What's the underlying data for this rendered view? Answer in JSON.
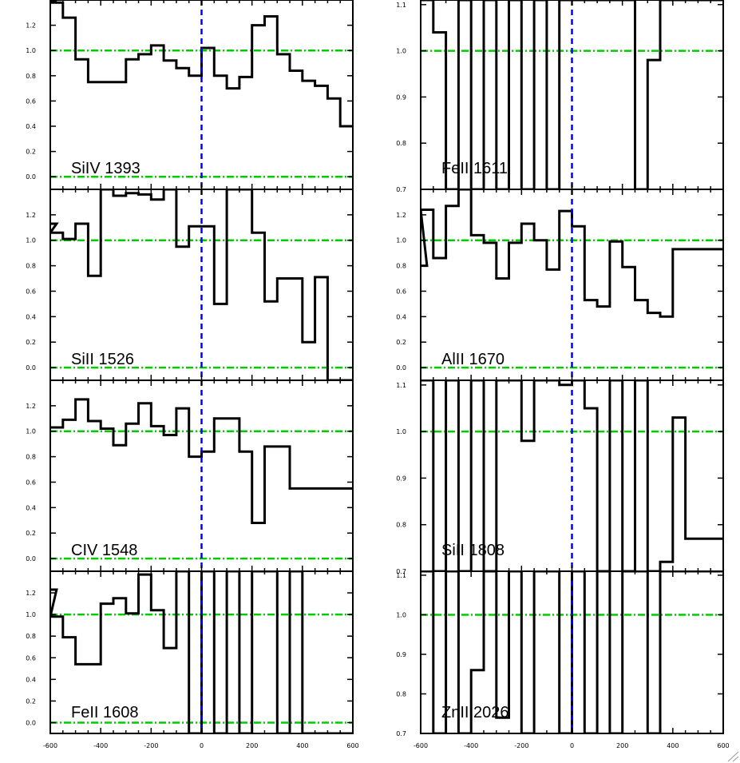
{
  "chart_data": [
    {
      "type": "line",
      "title": "SiIV 1393",
      "xlim": [
        -600,
        600
      ],
      "ylim": [
        -0.1,
        1.4
      ],
      "yticks": [
        "0.0",
        "0.2",
        "0.4",
        "0.6",
        "0.8",
        "1.0",
        "1.2"
      ],
      "xticks": [],
      "reference_lines": [
        0,
        1
      ],
      "x": [
        -600,
        -575,
        -525,
        -475,
        -425,
        -375,
        -325,
        -275,
        -225,
        -175,
        -125,
        -75,
        -25,
        25,
        75,
        125,
        175,
        225,
        275,
        325,
        375,
        425,
        475,
        525,
        575
      ],
      "y": [
        1.4,
        1.38,
        1.26,
        0.93,
        0.75,
        0.75,
        0.75,
        0.93,
        0.97,
        1.04,
        0.92,
        0.86,
        0.8,
        1.02,
        0.8,
        0.7,
        0.79,
        1.2,
        1.27,
        0.97,
        0.84,
        0.76,
        0.72,
        0.62,
        0.4
      ]
    },
    {
      "type": "line",
      "title": "FeII 1611",
      "xlim": [
        -600,
        600
      ],
      "ylim": [
        0.7,
        1.11
      ],
      "yticks": [
        "0.7",
        "0.8",
        "0.9",
        "1.0",
        "1.1"
      ],
      "xticks": [],
      "reference_lines": [
        1.0
      ],
      "x": [
        -600,
        -575,
        -525,
        -475,
        -425,
        -375,
        -325,
        -275,
        -225,
        -175,
        -125,
        -75,
        -25,
        25,
        75,
        125,
        175,
        225,
        275,
        325,
        375,
        425,
        475,
        525,
        575
      ],
      "y": [
        1.11,
        1.11,
        1.04,
        0.7,
        1.11,
        0.7,
        1.11,
        0.7,
        1.11,
        0.7,
        1.11,
        0.7,
        1.11,
        1.11,
        1.11,
        1.11,
        1.11,
        1.11,
        0.7,
        0.98,
        1.11,
        1.11,
        1.11,
        1.11,
        1.11
      ]
    },
    {
      "type": "line",
      "title": "SiII 1526",
      "xlim": [
        -600,
        600
      ],
      "ylim": [
        -0.1,
        1.4
      ],
      "yticks": [
        "0.0",
        "0.2",
        "0.4",
        "0.6",
        "0.8",
        "1.0",
        "1.2"
      ],
      "xticks": [],
      "reference_lines": [
        0,
        1
      ],
      "x": [
        -600,
        -575,
        -525,
        -475,
        -425,
        -375,
        -325,
        -275,
        -225,
        -175,
        -125,
        -75,
        -25,
        25,
        75,
        125,
        175,
        225,
        275,
        325,
        375,
        425,
        475,
        525,
        575
      ],
      "y": [
        1.13,
        1.06,
        1.01,
        1.13,
        0.72,
        1.4,
        1.35,
        1.37,
        1.36,
        1.32,
        1.4,
        0.95,
        1.11,
        1.11,
        0.5,
        1.4,
        1.4,
        1.06,
        0.52,
        0.7,
        0.7,
        0.2,
        0.71,
        -0.1,
        -0.1
      ]
    },
    {
      "type": "line",
      "title": "AlII 1670",
      "xlim": [
        -600,
        600
      ],
      "ylim": [
        -0.1,
        1.4
      ],
      "yticks": [
        "0.0",
        "0.2",
        "0.4",
        "0.6",
        "0.8",
        "1.0",
        "1.2"
      ],
      "xticks": [],
      "reference_lines": [
        0,
        1
      ],
      "x": [
        -600,
        -575,
        -525,
        -475,
        -425,
        -375,
        -325,
        -275,
        -225,
        -175,
        -125,
        -75,
        -25,
        25,
        75,
        125,
        175,
        225,
        275,
        325,
        375,
        425,
        475,
        525,
        575
      ],
      "y": [
        0.8,
        1.24,
        0.86,
        1.27,
        1.4,
        1.04,
        0.98,
        0.7,
        0.98,
        1.13,
        1.0,
        0.77,
        1.23,
        1.11,
        0.53,
        0.48,
        0.99,
        0.79,
        0.53,
        0.43,
        0.4,
        0.93,
        0.93,
        0.93,
        0.93
      ]
    },
    {
      "type": "line",
      "title": "CIV 1548",
      "xlim": [
        -600,
        600
      ],
      "ylim": [
        -0.1,
        1.4
      ],
      "yticks": [
        "0.0",
        "0.2",
        "0.4",
        "0.6",
        "0.8",
        "1.0",
        "1.2"
      ],
      "xticks": [],
      "reference_lines": [
        0,
        1
      ],
      "x": [
        -600,
        -575,
        -525,
        -475,
        -425,
        -375,
        -325,
        -275,
        -225,
        -175,
        -125,
        -75,
        -25,
        25,
        75,
        125,
        175,
        225,
        275,
        325,
        375,
        425,
        475,
        525,
        575
      ],
      "y": [
        1.03,
        1.03,
        1.09,
        1.25,
        1.08,
        1.02,
        0.89,
        1.06,
        1.22,
        1.04,
        0.97,
        1.18,
        0.8,
        0.84,
        1.1,
        1.1,
        0.84,
        0.28,
        0.88,
        0.88,
        0.55,
        0.55,
        0.55,
        0.55,
        0.55
      ]
    },
    {
      "type": "line",
      "title": "SiII 1808",
      "xlim": [
        -600,
        600
      ],
      "ylim": [
        0.7,
        1.11
      ],
      "yticks": [
        "0.7",
        "0.8",
        "0.9",
        "1.0",
        "1.1"
      ],
      "xticks": [],
      "reference_lines": [
        1.0
      ],
      "x": [
        -600,
        -575,
        -525,
        -475,
        -425,
        -375,
        -325,
        -275,
        -225,
        -175,
        -125,
        -75,
        -25,
        25,
        75,
        125,
        175,
        225,
        275,
        325,
        375,
        425,
        475,
        525,
        575
      ],
      "y": [
        1.11,
        1.11,
        0.7,
        1.11,
        0.7,
        1.11,
        0.7,
        1.11,
        1.11,
        0.98,
        1.11,
        1.11,
        1.1,
        1.11,
        1.05,
        0.7,
        1.11,
        0.7,
        1.11,
        0.7,
        0.72,
        1.03,
        0.77,
        0.77,
        0.77
      ]
    },
    {
      "type": "line",
      "title": "FeII 1608",
      "xlim": [
        -600,
        600
      ],
      "ylim": [
        -0.1,
        1.4
      ],
      "yticks": [
        "0.0",
        "0.2",
        "0.4",
        "0.6",
        "0.8",
        "1.0",
        "1.2"
      ],
      "xticks": [
        "-600",
        "-400",
        "-200",
        "0",
        "200",
        "400",
        "600"
      ],
      "reference_lines": [
        0,
        1
      ],
      "x": [
        -600,
        -575,
        -525,
        -475,
        -425,
        -375,
        -325,
        -275,
        -225,
        -175,
        -125,
        -75,
        -25,
        25,
        75,
        125,
        175,
        225,
        275,
        325,
        375,
        425,
        475,
        525,
        575
      ],
      "y": [
        1.23,
        0.98,
        0.79,
        0.54,
        0.54,
        1.1,
        1.15,
        1.01,
        1.37,
        1.04,
        0.69,
        1.4,
        -0.1,
        1.4,
        -0.1,
        1.4,
        -0.1,
        1.4,
        1.4,
        -0.1,
        1.4,
        -0.1,
        -0.1,
        -0.1,
        -0.1
      ]
    },
    {
      "type": "line",
      "title": "ZnII 2026",
      "xlim": [
        -600,
        600
      ],
      "ylim": [
        0.7,
        1.11
      ],
      "yticks": [
        "0.7",
        "0.8",
        "0.9",
        "1.0",
        "1.1"
      ],
      "xticks": [
        "-600",
        "-400",
        "-200",
        "0",
        "200",
        "400",
        "600"
      ],
      "reference_lines": [
        1.0
      ],
      "x": [
        -600,
        -575,
        -525,
        -475,
        -425,
        -375,
        -325,
        -275,
        -225,
        -175,
        -125,
        -75,
        -25,
        25,
        75,
        125,
        175,
        225,
        275,
        325,
        375,
        425,
        475,
        525,
        575
      ],
      "y": [
        1.11,
        1.11,
        0.7,
        1.11,
        0.7,
        0.86,
        1.11,
        0.74,
        1.11,
        0.7,
        1.11,
        1.11,
        0.7,
        1.11,
        0.7,
        1.11,
        0.7,
        1.11,
        1.11,
        0.7,
        1.11,
        1.11,
        1.11,
        1.11,
        1.11
      ]
    }
  ]
}
